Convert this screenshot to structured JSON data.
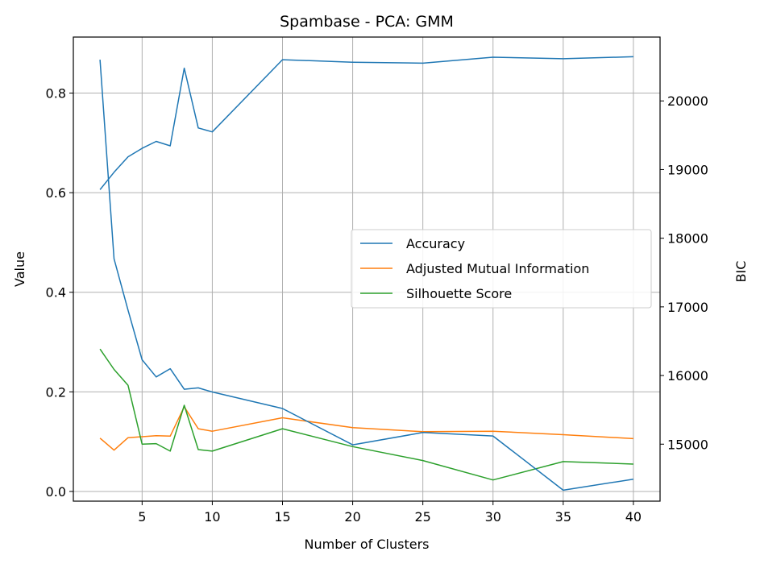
{
  "chart_data": {
    "type": "line",
    "title": "Spambase - PCA: GMM",
    "xlabel": "Number of Clusters",
    "ylabel": "Value",
    "y2label": "BIC",
    "xlim": [
      0.1,
      41.9
    ],
    "ylim": [
      -0.0195,
      0.9125
    ],
    "y2lim": [
      14170,
      20930
    ],
    "grid": true,
    "legend_position": "center-right",
    "x_ticks": [
      "5",
      "10",
      "15",
      "20",
      "25",
      "30",
      "35",
      "40"
    ],
    "y_ticks": [
      "0.0",
      "0.2",
      "0.4",
      "0.6",
      "0.8"
    ],
    "y2_ticks": [
      "15000",
      "16000",
      "17000",
      "18000",
      "19000",
      "20000"
    ],
    "x": [
      2,
      3,
      4,
      5,
      6,
      7,
      8,
      9,
      10,
      15,
      20,
      25,
      30,
      35,
      40
    ],
    "series": [
      {
        "name": "Accuracy",
        "axis": "left",
        "color": "#1f77b4",
        "values": [
          0.606,
          0.641,
          0.672,
          0.689,
          0.703,
          0.694,
          0.85,
          0.73,
          0.722,
          0.867,
          0.862,
          0.86,
          0.872,
          0.869,
          0.873
        ]
      },
      {
        "name": "Adjusted Mutual Information",
        "axis": "left",
        "color": "#ff7f0e",
        "values": [
          0.107,
          0.083,
          0.108,
          0.11,
          0.112,
          0.111,
          0.17,
          0.126,
          0.121,
          0.148,
          0.128,
          0.12,
          0.121,
          0.114,
          0.106
        ]
      },
      {
        "name": "Silhouette Score",
        "axis": "left",
        "color": "#2ca02c",
        "values": [
          0.286,
          0.245,
          0.213,
          0.095,
          0.096,
          0.081,
          0.173,
          0.084,
          0.081,
          0.126,
          0.09,
          0.062,
          0.023,
          0.06,
          0.055
        ]
      },
      {
        "name": "BIC",
        "axis": "right",
        "color": "#1f77b4",
        "values": [
          20600,
          17700,
          16950,
          16230,
          15980,
          16100,
          15800,
          15820,
          15760,
          15520,
          14990,
          15170,
          15120,
          14330,
          14490
        ]
      }
    ]
  }
}
